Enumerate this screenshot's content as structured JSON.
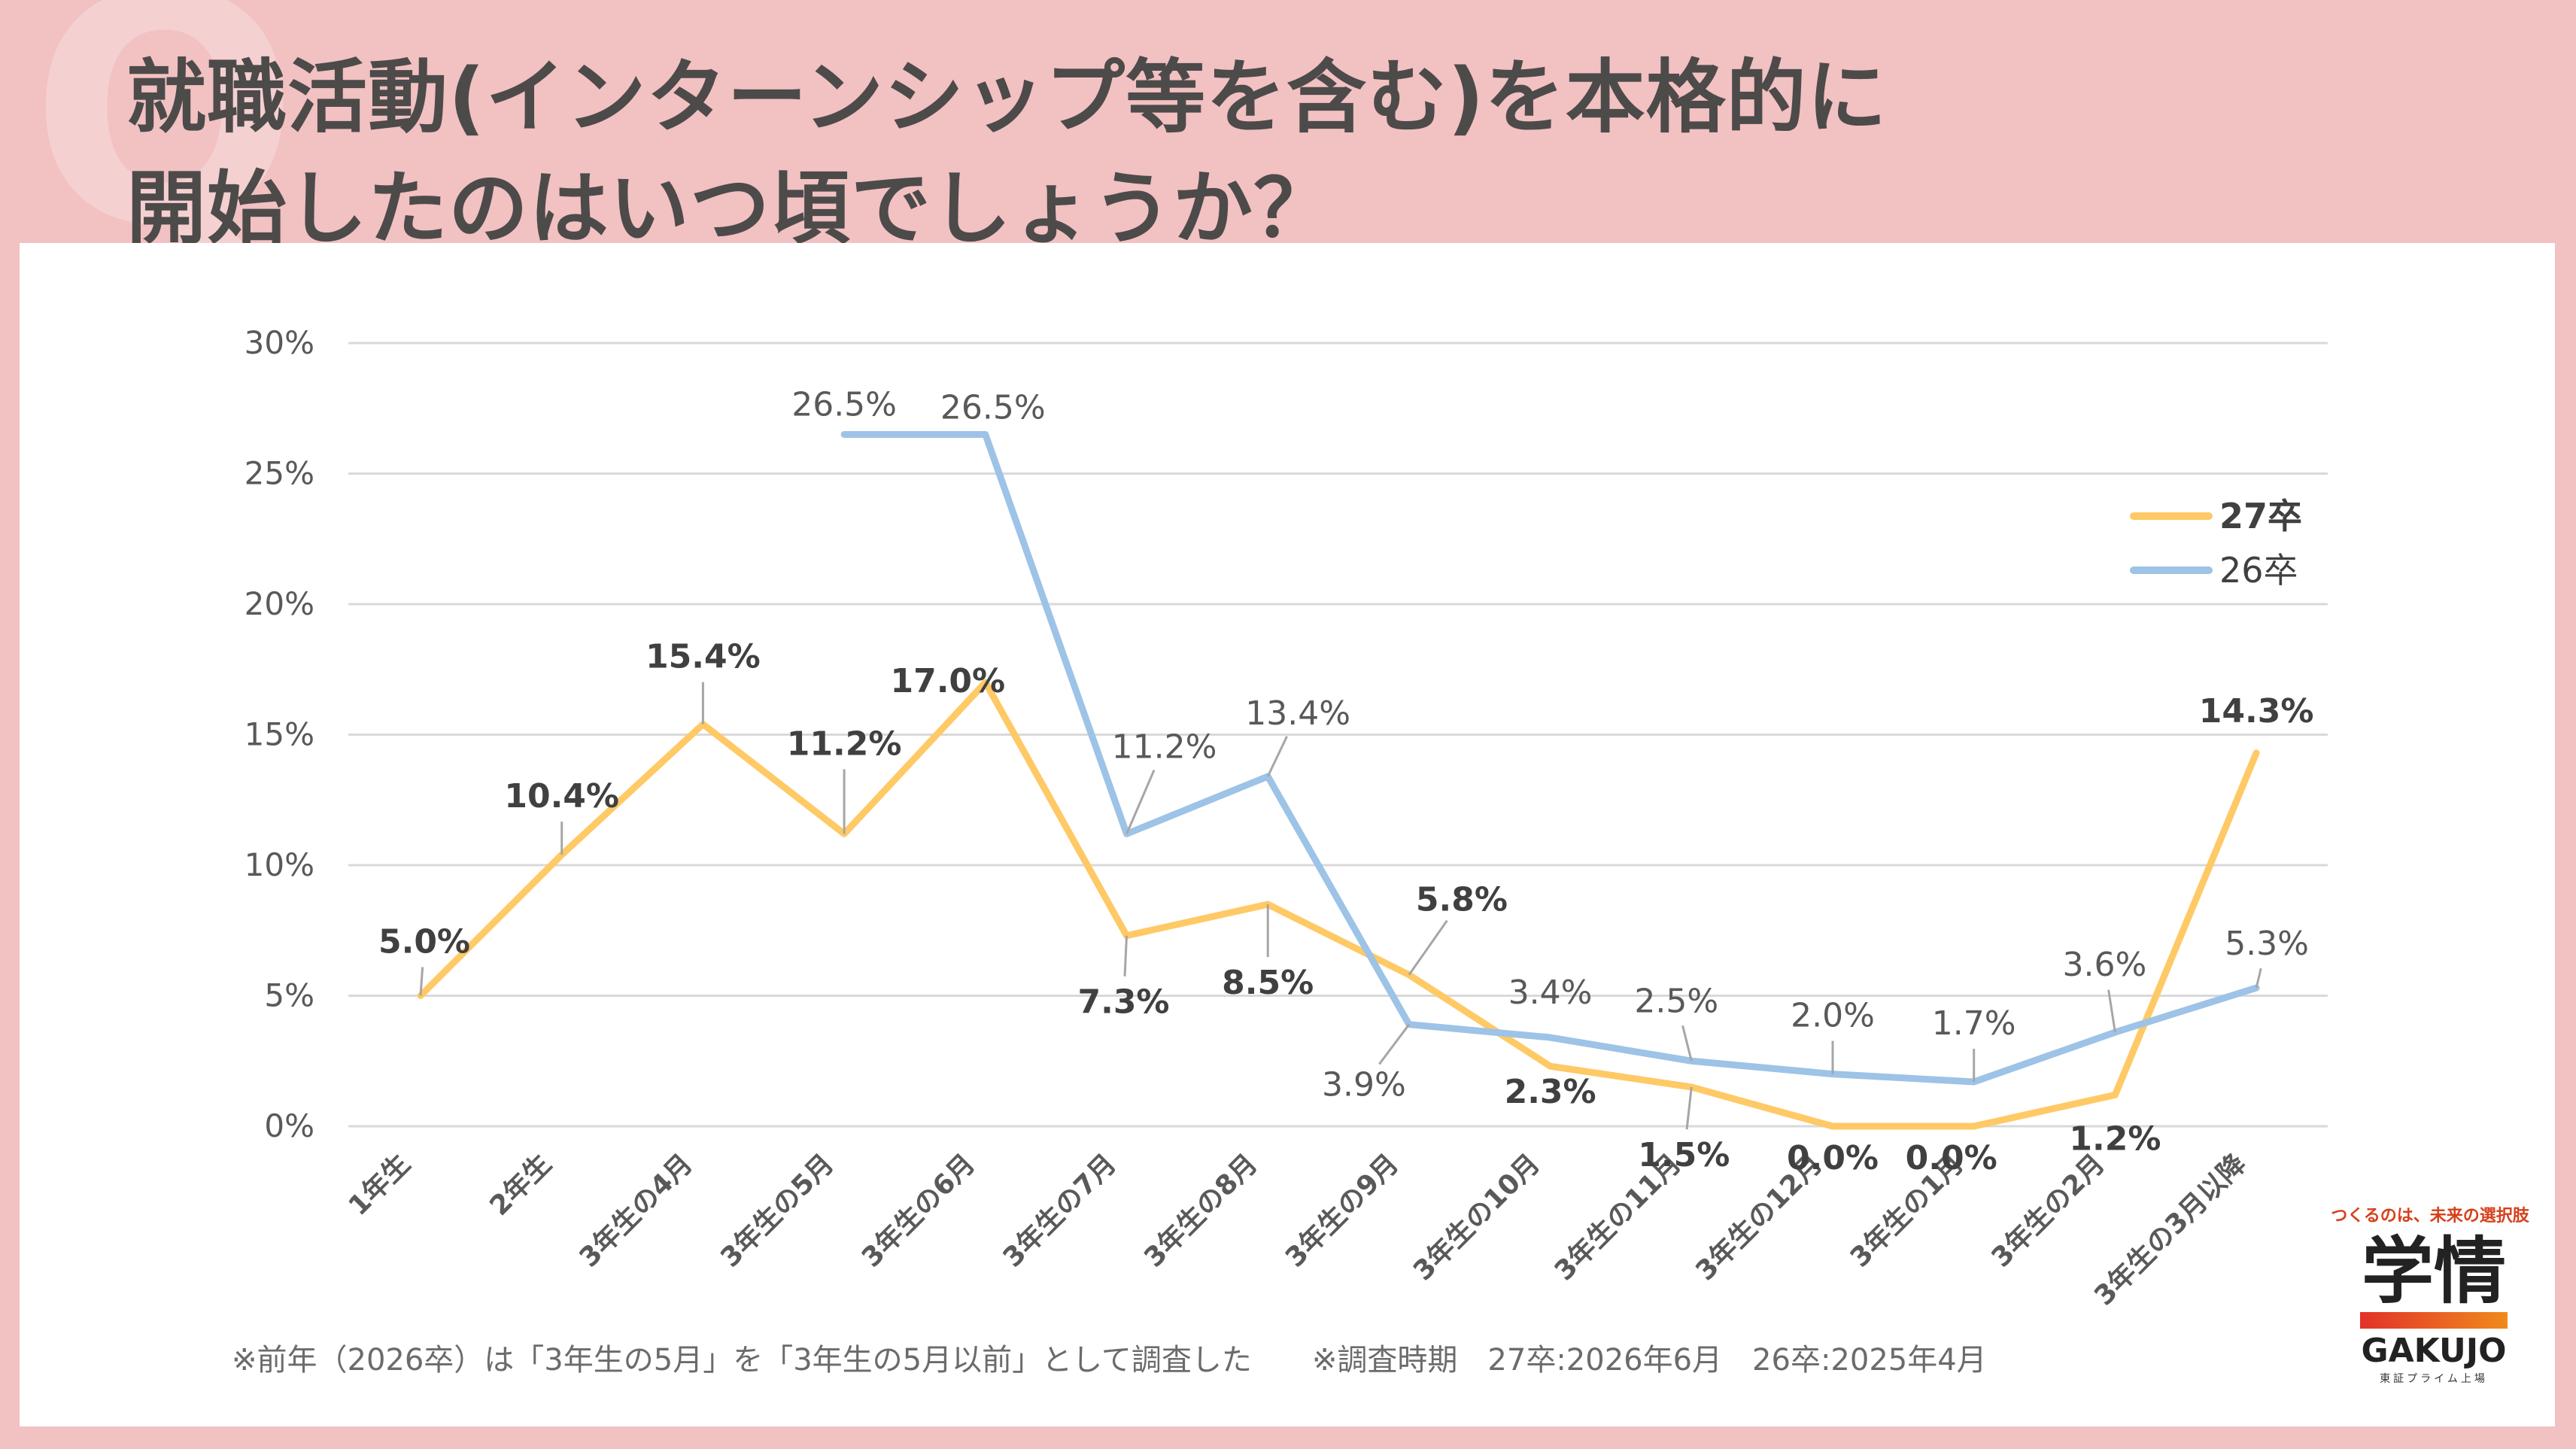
{
  "title": {
    "line1": "就職活動(インターンシップ等を含む)を本格的に",
    "line2": "開始したのはいつ頃でしょうか？"
  },
  "chart_data": {
    "type": "line",
    "categories": [
      "1年生",
      "2年生",
      "3年生の4月",
      "3年生の5月",
      "3年生の6月",
      "3年生の7月",
      "3年生の8月",
      "3年生の9月",
      "3年生の10月",
      "3年生の11月",
      "3年生の12月",
      "3年生の1月",
      "3年生の2月",
      "3年生の3月以降"
    ],
    "series": [
      {
        "name": "27卒",
        "color": "#ffc966",
        "values": [
          5.0,
          10.4,
          15.4,
          11.2,
          17.0,
          7.3,
          8.5,
          5.8,
          2.3,
          1.5,
          0.0,
          0.0,
          1.2,
          14.3
        ],
        "labels": [
          "5.0%",
          "10.4%",
          "15.4%",
          "11.2%",
          "17.0%",
          "7.3%",
          "8.5%",
          "5.8%",
          "2.3%",
          "1.5%",
          "0.0%",
          "0.0%",
          "1.2%",
          "14.3%"
        ]
      },
      {
        "name": "26卒",
        "color": "#9dc3e6",
        "values": [
          null,
          null,
          null,
          26.5,
          26.5,
          11.2,
          13.4,
          3.9,
          3.4,
          2.5,
          2.0,
          1.7,
          3.6,
          5.3
        ],
        "labels": [
          null,
          null,
          null,
          "26.5%",
          "26.5%",
          "11.2%",
          "13.4%",
          "3.9%",
          "3.4%",
          "2.5%",
          "2.0%",
          "1.7%",
          "3.6%",
          "5.3%"
        ]
      }
    ],
    "yticks": [
      "0%",
      "5%",
      "10%",
      "15%",
      "20%",
      "25%",
      "30%"
    ],
    "ylim": [
      0,
      30
    ],
    "grid": true,
    "legend": "top-right"
  },
  "footnote": "※前年（2026卒）は「3年生の5月」を「3年生の5月以前」として調査した　　※調査時期　27卒:2026年6月　26卒:2025年4月",
  "logo": {
    "tagline": "つくるのは、未来の選択肢",
    "mark": "学情",
    "name": "GAKUJO",
    "sub": "東証プライム上場"
  }
}
